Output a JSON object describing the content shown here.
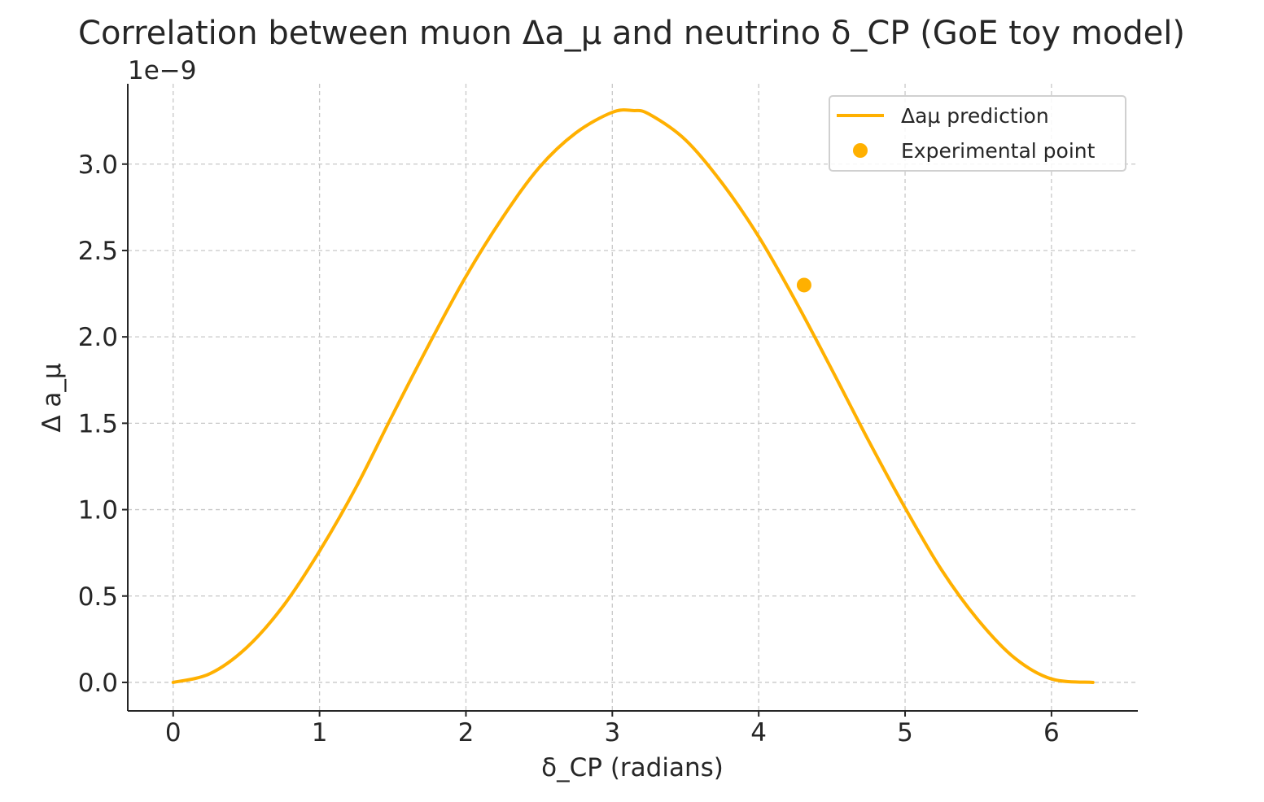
{
  "chart_data": {
    "type": "line",
    "title": "Correlation between muon Δa_μ and neutrino δ_CP (GoE toy model)",
    "xlabel": "δ_CP  (radians)",
    "ylabel": "Δ a_μ",
    "y_offset_label": "1e−9",
    "xlim": [
      -0.31,
      6.59
    ],
    "ylim": [
      -0.165,
      3.465
    ],
    "y_scale_factor": 1e-09,
    "x_ticks": [
      0,
      1,
      2,
      3,
      4,
      5,
      6
    ],
    "x_tick_labels": [
      "0",
      "1",
      "2",
      "3",
      "4",
      "5",
      "6"
    ],
    "y_ticks": [
      0.0,
      0.5,
      1.0,
      1.5,
      2.0,
      2.5,
      3.0
    ],
    "y_tick_labels": [
      "0.0",
      "0.5",
      "1.0",
      "1.5",
      "2.0",
      "2.5",
      "3.0"
    ],
    "grid": true,
    "legend_position": "top-right",
    "colors": {
      "series": "#ffb000",
      "grid": "#c8c8c8",
      "axis": "#262626"
    },
    "series": [
      {
        "name": "Δaμ prediction",
        "kind": "line",
        "x": [
          0.0,
          0.25,
          0.5,
          0.75,
          1.0,
          1.25,
          1.5,
          1.75,
          2.0,
          2.25,
          2.5,
          2.75,
          3.0,
          3.1416,
          3.25,
          3.5,
          3.75,
          4.0,
          4.25,
          4.5,
          4.75,
          5.0,
          5.25,
          5.5,
          5.75,
          6.0,
          6.2832
        ],
        "y": [
          0.0,
          0.05,
          0.2,
          0.44,
          0.76,
          1.13,
          1.55,
          1.96,
          2.35,
          2.69,
          2.98,
          3.18,
          3.3,
          3.31,
          3.29,
          3.14,
          2.89,
          2.58,
          2.21,
          1.81,
          1.4,
          1.01,
          0.65,
          0.36,
          0.14,
          0.02,
          0.0
        ]
      },
      {
        "name": "Experimental point",
        "kind": "scatter",
        "x": [
          4.31
        ],
        "y": [
          2.3
        ]
      }
    ]
  }
}
